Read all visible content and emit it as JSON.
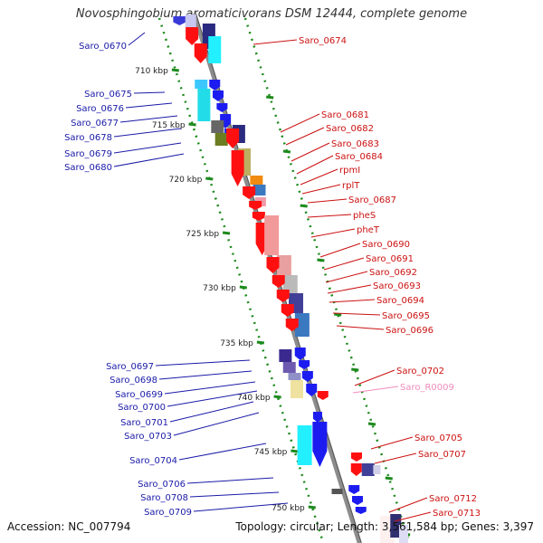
{
  "title": "Novosphingobium aromaticivorans DSM 12444, complete genome",
  "footer": {
    "accession": "Accession: NC_007794",
    "summary": "Topology: circular; Length: 3,561,584 bp; Genes: 3,397"
  },
  "colors": {
    "backbone": "#8c8c8c",
    "tick_green": "#1d8a1d",
    "label_blue": "#1a1aa8",
    "label_red": "#cc1111",
    "label_pink": "#f08cbc"
  },
  "scale_labels": [
    "710 kbp",
    "715 kbp",
    "720 kbp",
    "725 kbp",
    "730 kbp",
    "735 kbp",
    "740 kbp",
    "745 kbp",
    "750 kbp"
  ],
  "left_genes": [
    "Saro_0670",
    "Saro_0675",
    "Saro_0676",
    "Saro_0677",
    "Saro_0678",
    "Saro_0679",
    "Saro_0680",
    "Saro_0697",
    "Saro_0698",
    "Saro_0699",
    "Saro_0700",
    "Saro_0701",
    "Saro_0703",
    "Saro_0704",
    "Saro_0706",
    "Saro_0708",
    "Saro_0709"
  ],
  "right_genes": [
    "Saro_0674",
    "Saro_0681",
    "Saro_0682",
    "Saro_0683",
    "Saro_0684",
    "rpmI",
    "rplT",
    "Saro_0687",
    "pheS",
    "pheT",
    "Saro_0690",
    "Saro_0691",
    "Saro_0692",
    "Saro_0693",
    "Saro_0694",
    "Saro_0695",
    "Saro_0696",
    "Saro_0702",
    "Saro_R0009",
    "Saro_0705",
    "Saro_0707",
    "Saro_0712",
    "Saro_0713"
  ]
}
